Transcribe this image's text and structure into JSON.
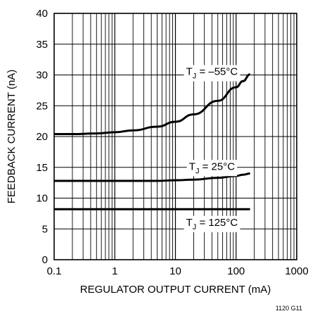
{
  "chart_data": {
    "type": "line",
    "title": "",
    "xlabel": "REGULATOR OUTPUT CURRENT (mA)",
    "ylabel": "FEEDBACK CURRENT (nA)",
    "x_scale": "log",
    "xlim": [
      0.1,
      1000
    ],
    "ylim": [
      0,
      40
    ],
    "x_ticks": [
      "0.1",
      "1",
      "10",
      "100",
      "1000"
    ],
    "y_ticks": [
      "0",
      "5",
      "10",
      "15",
      "20",
      "25",
      "30",
      "35",
      "40"
    ],
    "grid": true,
    "figure_id": "1120 G11",
    "colors": {
      "line": "#000000",
      "grid": "#000000",
      "background": "#ffffff"
    },
    "series": [
      {
        "name": "T",
        "label": {
          "main": "T",
          "sub": "J",
          "rest": " = –55°C",
          "at": [
            40,
            30
          ]
        },
        "x": [
          0.1,
          0.2,
          0.5,
          1,
          2,
          5,
          10,
          20,
          50,
          100,
          130,
          170
        ],
        "y": [
          20.4,
          20.4,
          20.5,
          20.7,
          21.0,
          21.6,
          22.4,
          23.6,
          25.8,
          28.0,
          29.0,
          30.1
        ]
      },
      {
        "name": "T",
        "label": {
          "main": "T",
          "sub": "J",
          "rest": " = 25°C",
          "at": [
            40,
            14.6
          ]
        },
        "x": [
          0.1,
          0.5,
          1,
          2,
          5,
          10,
          20,
          50,
          100,
          130,
          170
        ],
        "y": [
          12.8,
          12.8,
          12.8,
          12.8,
          12.8,
          12.9,
          13.0,
          13.3,
          13.6,
          13.8,
          14.0
        ]
      },
      {
        "name": "T",
        "label": {
          "main": "T",
          "sub": "J",
          "rest": " = 125°C",
          "at": [
            40,
            5.5
          ]
        },
        "x": [
          0.1,
          1,
          10,
          100,
          170
        ],
        "y": [
          8.2,
          8.2,
          8.2,
          8.2,
          8.2
        ]
      }
    ]
  }
}
